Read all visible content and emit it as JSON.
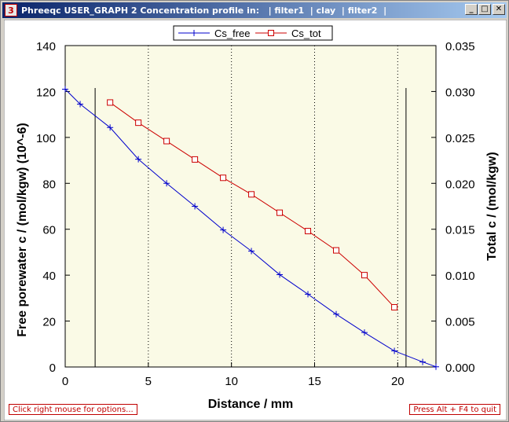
{
  "window": {
    "title": "Phreeqc USER_GRAPH 2 Concentration profile in:   | filter1  | clay  | filter2  |",
    "icon_label": "3",
    "minimize_glyph": "_",
    "maximize_glyph": "□",
    "close_glyph": "✕"
  },
  "status": {
    "left_hint": "Click right mouse for options...",
    "right_hint": "Press Alt + F4 to quit"
  },
  "colors": {
    "plot_background": "#fafae6",
    "series1": "#0000cc",
    "series2": "#cc0000"
  },
  "chart_data": {
    "type": "line",
    "title": "",
    "xlabel": "Distance / mm",
    "ylabel": "Free porewater c / (mol/kgw) (10^-6)",
    "y2label": "Total c / (mol/kgw)",
    "xlim": [
      0,
      22.3
    ],
    "ylim": [
      0,
      140
    ],
    "y2lim": [
      0,
      0.035
    ],
    "xticks": [
      "0",
      "5",
      "10",
      "15",
      "20"
    ],
    "yticks": [
      "0",
      "20",
      "40",
      "60",
      "80",
      "100",
      "120",
      "140"
    ],
    "y2ticks": [
      "0.000",
      "0.005",
      "0.010",
      "0.015",
      "0.020",
      "0.025",
      "0.030",
      "0.035"
    ],
    "x_tick_values": [
      0,
      5,
      10,
      15,
      20
    ],
    "y_tick_values": [
      0,
      20,
      40,
      60,
      80,
      100,
      120,
      140
    ],
    "grid": "vertical-dotted",
    "legend_position": "top-center",
    "boundaries": [
      1.8,
      20.5
    ],
    "series": [
      {
        "name": "Cs_free",
        "axis": "left",
        "marker": "plus",
        "x": [
          0,
          0.9,
          2.7,
          4.4,
          6.1,
          7.8,
          9.5,
          11.2,
          12.9,
          14.6,
          16.3,
          18.0,
          19.8,
          21.5,
          22.3
        ],
        "y": [
          121,
          114.5,
          104.3,
          90.5,
          80.0,
          70.0,
          59.7,
          50.5,
          40.2,
          31.7,
          23.0,
          15.0,
          7.0,
          2.2,
          0.1
        ]
      },
      {
        "name": "Cs_tot",
        "axis": "right",
        "marker": "open-square",
        "x": [
          2.7,
          4.4,
          6.1,
          7.8,
          9.5,
          11.2,
          12.9,
          14.6,
          16.3,
          18.0,
          19.8
        ],
        "y": [
          0.0288,
          0.0266,
          0.0246,
          0.0226,
          0.0206,
          0.0188,
          0.0168,
          0.0148,
          0.0127,
          0.01,
          0.0065
        ]
      }
    ]
  }
}
